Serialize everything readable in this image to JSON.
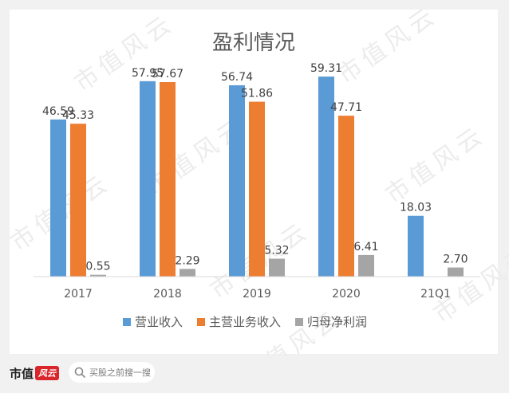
{
  "chart_data": {
    "type": "bar",
    "title": "盈利情况",
    "categories": [
      "2017",
      "2018",
      "2019",
      "2020",
      "21Q1"
    ],
    "series": [
      {
        "name": "营业收入",
        "color": "#5b9bd5",
        "values": [
          46.59,
          57.95,
          56.74,
          59.31,
          18.03
        ]
      },
      {
        "name": "主营业务收入",
        "color": "#ed7d31",
        "values": [
          45.33,
          57.67,
          51.86,
          47.71,
          null
        ]
      },
      {
        "name": "归母净利润",
        "color": "#a5a5a5",
        "values": [
          0.55,
          2.29,
          5.32,
          6.41,
          2.7
        ]
      }
    ],
    "data_labels": [
      [
        "46.59",
        "57.95",
        "56.74",
        "59.31",
        "18.03"
      ],
      [
        "45.33",
        "57.67",
        "51.86",
        "47.71",
        null
      ],
      [
        "0.55",
        "2.29",
        "5.32",
        "6.41",
        "2.70"
      ]
    ],
    "ylim": [
      0,
      65
    ],
    "grid": false,
    "legend_position": "bottom"
  },
  "watermark": "市值风云",
  "footer": {
    "brand_text": "市值",
    "brand_badge": "风云",
    "search_placeholder": "买股之前搜一搜",
    "search_icon": "search-icon"
  }
}
